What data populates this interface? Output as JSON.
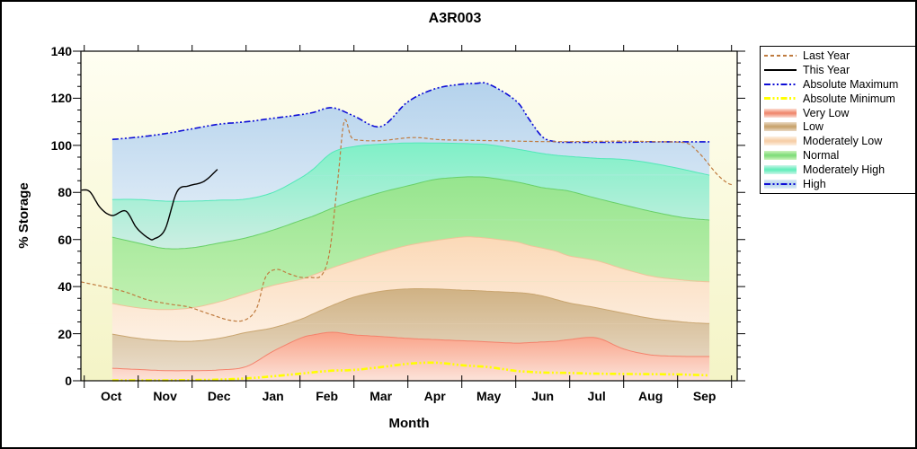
{
  "figure": {
    "title": "A3R003",
    "x_axis": {
      "label": "Month",
      "tick_labels": [
        "Oct",
        "Nov",
        "Dec",
        "Jan",
        "Feb",
        "Mar",
        "Apr",
        "May",
        "Jun",
        "Jul",
        "Aug",
        "Sep"
      ]
    },
    "y_axis": {
      "label": "% Storage",
      "tick_values": [
        0,
        20,
        40,
        60,
        80,
        100,
        120,
        140
      ],
      "min": 0,
      "max": 140,
      "minor_step": 5
    },
    "colors": {
      "plot_bg_top": "#fffef2",
      "plot_bg_bottom": "#f4f4c6",
      "axis": "#000000"
    },
    "legend": {
      "items": [
        {
          "label": "Last Year",
          "swatch": {
            "kind": "line",
            "style": "dashed",
            "color": "#bf7b3f"
          }
        },
        {
          "label": "This Year",
          "swatch": {
            "kind": "line",
            "style": "solid",
            "color": "#000000"
          }
        },
        {
          "label": "Absolute Maximum",
          "swatch": {
            "kind": "line",
            "style": "dashdot",
            "color": "#0d0dd6"
          }
        },
        {
          "label": "Absolute Minimum",
          "swatch": {
            "kind": "line",
            "style": "dashdot",
            "color": "#ffff00",
            "thick": true
          }
        },
        {
          "label": "Very Low",
          "swatch": {
            "kind": "band",
            "center": "#f08a70",
            "edge": "#fcded4"
          }
        },
        {
          "label": "Low",
          "swatch": {
            "kind": "band",
            "center": "#c9a56f",
            "edge": "#ead9c4"
          }
        },
        {
          "label": "Moderately Low",
          "swatch": {
            "kind": "band",
            "center": "#f7cfa8",
            "edge": "#fdf0e2"
          }
        },
        {
          "label": "Normal",
          "swatch": {
            "kind": "band",
            "center": "#82dd7c",
            "edge": "#ccf3bc"
          }
        },
        {
          "label": "Moderately High",
          "swatch": {
            "kind": "band",
            "center": "#66eebd",
            "edge": "#ccf5e8"
          }
        },
        {
          "label": "High",
          "swatch": {
            "kind": "band-line",
            "center": "#b8d4ec",
            "edge": "#dcebf6",
            "line_style": "dashdot",
            "line_color": "#0d0dd6"
          }
        }
      ]
    }
  },
  "chart_data": {
    "type": "area",
    "title": "A3R003",
    "xlabel": "Month",
    "ylabel": "% Storage",
    "ylim": [
      0,
      140
    ],
    "x_unit": "months_from_Oct_1",
    "x_categories": [
      "Oct",
      "Nov",
      "Dec",
      "Jan",
      "Feb",
      "Mar",
      "Apr",
      "May",
      "Jun",
      "Jul",
      "Aug",
      "Sep"
    ],
    "grid": false,
    "legend_position": "outside-right",
    "bands_x": [
      0.52,
      1,
      1.5,
      2,
      2.5,
      3,
      3.5,
      4,
      4.25,
      4.6,
      5,
      5.5,
      6,
      6.5,
      7,
      7.25,
      7.5,
      8,
      8.25,
      8.5,
      8.75,
      9,
      9.5,
      10,
      10.5,
      11,
      11.3,
      11.59
    ],
    "band_boundaries": {
      "baseline": 0,
      "very_low_top": [
        5.3,
        4.8,
        4.3,
        4.3,
        4.6,
        6,
        12.5,
        18,
        19.5,
        20.6,
        19.5,
        18.8,
        18,
        17.5,
        17,
        16.8,
        16.5,
        16,
        16.2,
        16.5,
        16.8,
        17.5,
        18.2,
        13.5,
        11,
        10.4,
        10.3,
        10.3
      ],
      "low_top": [
        19.8,
        18,
        17,
        16.8,
        18,
        20.5,
        22.5,
        26,
        28.5,
        32,
        35.5,
        38,
        39,
        39,
        38.5,
        38.3,
        38,
        37.5,
        37,
        36,
        34.5,
        33,
        31,
        28.7,
        26.5,
        25.2,
        24.6,
        24.3
      ],
      "mod_low_top": [
        32.8,
        31,
        30.2,
        31,
        33.5,
        37,
        40.5,
        43,
        45,
        48,
        51,
        54.5,
        57.5,
        59.5,
        61,
        61,
        60.5,
        59,
        57.5,
        56.3,
        55,
        53,
        51,
        47.5,
        44.5,
        43,
        42.4,
        42
      ],
      "normal_top": [
        61,
        58.5,
        56.2,
        56.5,
        58.5,
        60.7,
        64,
        68,
        70,
        73.3,
        76.5,
        80,
        82.8,
        85.5,
        86.5,
        86.6,
        86.3,
        84.5,
        83.3,
        82,
        81.3,
        80.5,
        77.5,
        74.7,
        72,
        69.7,
        68.8,
        68.3
      ],
      "mod_high_top": [
        77,
        77,
        76.3,
        76.3,
        76.7,
        77.2,
        80,
        86,
        90,
        97,
        99.5,
        100.5,
        101,
        101,
        100.8,
        100.6,
        100.3,
        98.5,
        97.5,
        96.5,
        95.8,
        95.3,
        94.5,
        94,
        92.5,
        90.3,
        88.8,
        87.3
      ],
      "absolute_maximum": [
        102.5,
        103.5,
        105,
        107,
        109,
        110,
        111.5,
        113,
        114,
        116,
        112.5,
        108,
        118.5,
        124,
        126,
        126.3,
        126,
        119,
        111,
        103.5,
        101.5,
        101.3,
        101.3,
        101.3,
        101.5,
        101.5,
        101.5,
        101.5
      ],
      "absolute_minimum": [
        0.2,
        0.2,
        0.2,
        0.3,
        0.5,
        1,
        1.9,
        3,
        3.6,
        4.3,
        4.6,
        5.8,
        7.2,
        7.7,
        6.6,
        6.2,
        5.8,
        4.2,
        3.8,
        3.5,
        3.4,
        3.3,
        3,
        2.9,
        2.8,
        2.7,
        2.5,
        2.3
      ]
    },
    "band_styles": [
      {
        "name": "Very Low",
        "fill_top": "#f9a186",
        "fill_bottom": "#fce3da",
        "edge": "#f4826c"
      },
      {
        "name": "Low",
        "fill_top": "#d0b284",
        "fill_bottom": "#e8dbc8",
        "edge": "#c9a56f"
      },
      {
        "name": "Moderately Low",
        "fill_top": "#fbd9b7",
        "fill_bottom": "#fdf0e3",
        "edge": "#efc39a"
      },
      {
        "name": "Normal",
        "fill_top": "#96e58e",
        "fill_bottom": "#c2f0b2",
        "edge": "#68d068"
      },
      {
        "name": "Moderately High",
        "fill_top": "#7ff0c7",
        "fill_bottom": "#cdeee3",
        "edge": "#52e8b8"
      },
      {
        "name": "High",
        "fill_top": "#b4d2ec",
        "fill_bottom": "#d9e8f5",
        "edge": null
      }
    ],
    "overlay_lines": [
      {
        "name": "Absolute Maximum",
        "style": "dashdot",
        "color": "#0d0dd6",
        "width": 1.6,
        "uses_bands_x": true,
        "boundary": "absolute_maximum"
      },
      {
        "name": "Absolute Minimum",
        "style": "dashdot",
        "color": "#ffff00",
        "width": 2.6,
        "uses_bands_x": true,
        "boundary": "absolute_minimum"
      },
      {
        "name": "Last Year",
        "style": "dashed",
        "color": "#bf7b3f",
        "width": 1.2,
        "points": [
          [
            -0.06,
            42
          ],
          [
            0.35,
            40
          ],
          [
            0.75,
            37.8
          ],
          [
            1.17,
            34.4
          ],
          [
            1.6,
            32.5
          ],
          [
            1.94,
            31.3
          ],
          [
            2.34,
            28.2
          ],
          [
            2.72,
            25.6
          ],
          [
            3.0,
            26
          ],
          [
            3.2,
            31
          ],
          [
            3.36,
            43.9
          ],
          [
            3.56,
            47.3
          ],
          [
            3.8,
            45.4
          ],
          [
            4.0,
            44
          ],
          [
            4.19,
            43.9
          ],
          [
            4.4,
            44.8
          ],
          [
            4.55,
            55
          ],
          [
            4.7,
            85
          ],
          [
            4.82,
            110.3
          ],
          [
            4.95,
            103.5
          ],
          [
            5.1,
            102.2
          ],
          [
            5.5,
            102
          ],
          [
            6.09,
            103.3
          ],
          [
            6.6,
            102.4
          ],
          [
            7.0,
            102.2
          ],
          [
            7.5,
            102
          ],
          [
            8.0,
            101.8
          ],
          [
            8.5,
            101.6
          ],
          [
            9.0,
            101.6
          ],
          [
            9.5,
            101.7
          ],
          [
            10.0,
            101.8
          ],
          [
            10.5,
            101.6
          ],
          [
            11.0,
            101.4
          ],
          [
            11.19,
            100.8
          ],
          [
            11.3,
            99
          ],
          [
            11.47,
            95
          ],
          [
            11.72,
            88
          ],
          [
            11.91,
            84.2
          ],
          [
            12.02,
            83.2
          ]
        ]
      },
      {
        "name": "This Year",
        "style": "solid",
        "color": "#000000",
        "width": 1.4,
        "points": [
          [
            -0.05,
            81
          ],
          [
            0.105,
            80.3
          ],
          [
            0.305,
            73.3
          ],
          [
            0.52,
            70.2
          ],
          [
            0.77,
            72.1
          ],
          [
            0.97,
            65
          ],
          [
            1.19,
            60.6
          ],
          [
            1.3,
            60.3
          ],
          [
            1.5,
            64.4
          ],
          [
            1.72,
            80.3
          ],
          [
            1.94,
            82.8
          ],
          [
            2.22,
            84.7
          ],
          [
            2.47,
            89.8
          ]
        ]
      }
    ]
  }
}
